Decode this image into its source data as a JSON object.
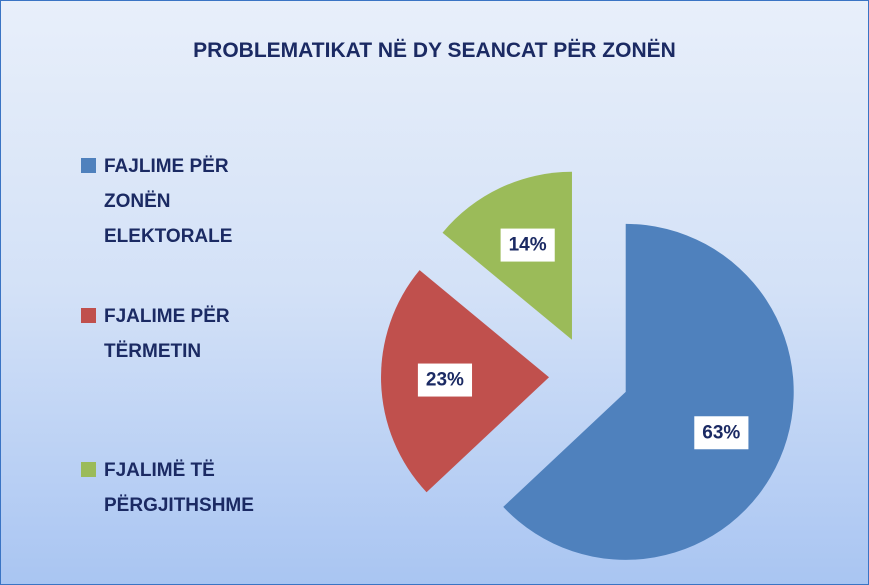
{
  "chart_data": {
    "type": "pie",
    "title": "PROBLEMATIKAT NË DY SEANCAT PËR ZONËN",
    "categories": [
      "FAJLIME PËR ZONËN ELEKTORALE",
      "FJALIME PËR TËRMETIN",
      "FJALIMË TË PËRGJITHSHME"
    ],
    "values": [
      63,
      23,
      14
    ],
    "value_labels": [
      "63%",
      "23%",
      "14%"
    ],
    "colors": [
      "#4f81bd",
      "#c0504d",
      "#9bbb59"
    ],
    "legend": "left"
  }
}
